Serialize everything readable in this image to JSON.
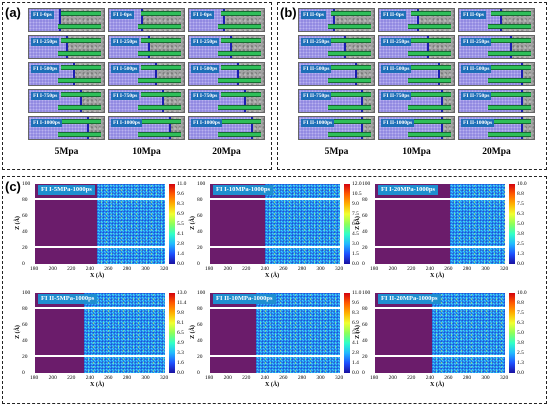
{
  "panel_a": {
    "letter": "(a)",
    "columns": [
      "5Mpa",
      "10Mpa",
      "20Mpa"
    ],
    "rows": [
      "FI I-0ps",
      "FI I-250ps",
      "FI I-500ps",
      "FI I-750ps",
      "FI I-1000ps"
    ]
  },
  "panel_b": {
    "letter": "(b)",
    "columns": [
      "5Mpa",
      "10Mpa",
      "20Mpa"
    ],
    "rows": [
      "FI II-0ps",
      "FI II-250ps",
      "FI II-500ps",
      "FI II-750ps",
      "FI II-1000ps"
    ]
  },
  "panel_c": {
    "letter": "(c)",
    "x_ticks": [
      "180",
      "200",
      "220",
      "240",
      "260",
      "280",
      "300",
      "320"
    ],
    "y_ticks": [
      "100",
      "80",
      "60",
      "40",
      "20",
      "0"
    ],
    "x_label": "X (Å)",
    "y_label": "Z (Å)",
    "maps": [
      {
        "title": "FI I-5MPa-1000ps",
        "scale": [
          "11.0",
          "9.6",
          "8.3",
          "6.9",
          "5.5",
          "4.1",
          "2.8",
          "1.4",
          "0.0"
        ]
      },
      {
        "title": "FI I-10MPa-1000ps",
        "scale": [
          "12.0",
          "10.5",
          "9.0",
          "7.5",
          "6.0",
          "4.5",
          "3.0",
          "1.5",
          "0.0"
        ]
      },
      {
        "title": "FI I-20MPa-1000ps",
        "scale": [
          "10.0",
          "8.8",
          "7.5",
          "6.3",
          "5.0",
          "3.8",
          "2.5",
          "1.3",
          "0.0"
        ]
      },
      {
        "title": "FI II-5MPa-1000ps",
        "scale": [
          "13.0",
          "11.4",
          "9.8",
          "8.1",
          "6.5",
          "4.9",
          "3.3",
          "1.6",
          "0.0"
        ]
      },
      {
        "title": "FI II-10MPa-1000ps",
        "scale": [
          "11.0",
          "9.6",
          "8.3",
          "6.9",
          "5.5",
          "4.1",
          "2.8",
          "1.4",
          "0.0"
        ]
      },
      {
        "title": "FI II-20MPa-1000ps",
        "scale": [
          "10.0",
          "8.8",
          "7.5",
          "6.3",
          "5.0",
          "3.8",
          "2.5",
          "1.3",
          "0.0"
        ]
      }
    ]
  }
}
